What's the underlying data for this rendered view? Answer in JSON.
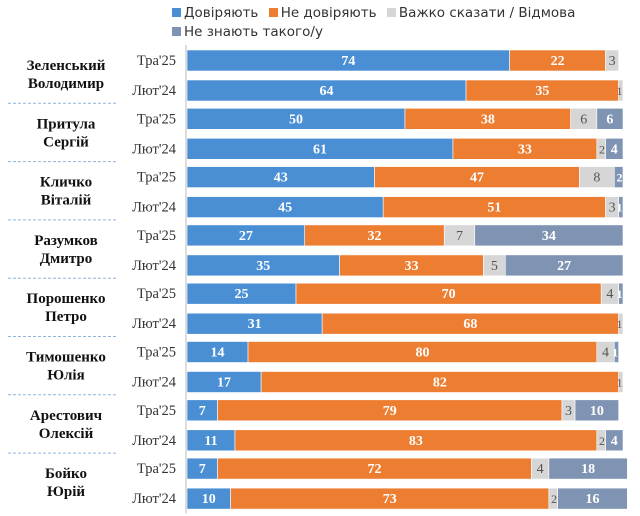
{
  "chart_data": {
    "type": "bar",
    "orientation": "horizontal",
    "stacked": true,
    "xlim": [
      0,
      100
    ],
    "legend_position": "top",
    "series": [
      {
        "name": "Довіряють",
        "color": "#4a8fd4"
      },
      {
        "name": "Не довіряють",
        "color": "#ed7d31"
      },
      {
        "name": "Важко сказати / Відмова",
        "color": "#d6d6d6"
      },
      {
        "name": "Не знають такого/у",
        "color": "#7f93b3"
      }
    ],
    "groups": [
      {
        "name": "Зеленський Володимир",
        "rows": [
          {
            "period": "Тра'25",
            "values": [
              74,
              22,
              3,
              0
            ]
          },
          {
            "period": "Лют'24",
            "values": [
              64,
              35,
              1,
              0
            ]
          }
        ]
      },
      {
        "name": "Притула Сергій",
        "rows": [
          {
            "period": "Тра'25",
            "values": [
              50,
              38,
              6,
              6
            ]
          },
          {
            "period": "Лют'24",
            "values": [
              61,
              33,
              2,
              4
            ]
          }
        ]
      },
      {
        "name": "Кличко Віталій",
        "rows": [
          {
            "period": "Тра'25",
            "values": [
              43,
              47,
              8,
              2
            ]
          },
          {
            "period": "Лют'24",
            "values": [
              45,
              51,
              3,
              1
            ]
          }
        ]
      },
      {
        "name": "Разумков Дмитро",
        "rows": [
          {
            "period": "Тра'25",
            "values": [
              27,
              32,
              7,
              34
            ]
          },
          {
            "period": "Лют'24",
            "values": [
              35,
              33,
              5,
              27
            ]
          }
        ]
      },
      {
        "name": "Порошенко Петро",
        "rows": [
          {
            "period": "Тра'25",
            "values": [
              25,
              70,
              4,
              1
            ]
          },
          {
            "period": "Лют'24",
            "values": [
              31,
              68,
              1,
              0
            ]
          }
        ]
      },
      {
        "name": "Тимошенко Юлія",
        "rows": [
          {
            "period": "Тра'25",
            "values": [
              14,
              80,
              4,
              1
            ]
          },
          {
            "period": "Лют'24",
            "values": [
              17,
              82,
              1,
              0
            ]
          }
        ]
      },
      {
        "name": "Арестович Олексій",
        "rows": [
          {
            "period": "Тра'25",
            "values": [
              7,
              79,
              3,
              10
            ]
          },
          {
            "period": "Лют'24",
            "values": [
              11,
              83,
              2,
              4
            ]
          }
        ]
      },
      {
        "name": "Бойко Юрій",
        "rows": [
          {
            "period": "Тра'25",
            "values": [
              7,
              72,
              4,
              18
            ]
          },
          {
            "period": "Лют'24",
            "values": [
              10,
              73,
              2,
              16
            ]
          }
        ]
      }
    ]
  }
}
